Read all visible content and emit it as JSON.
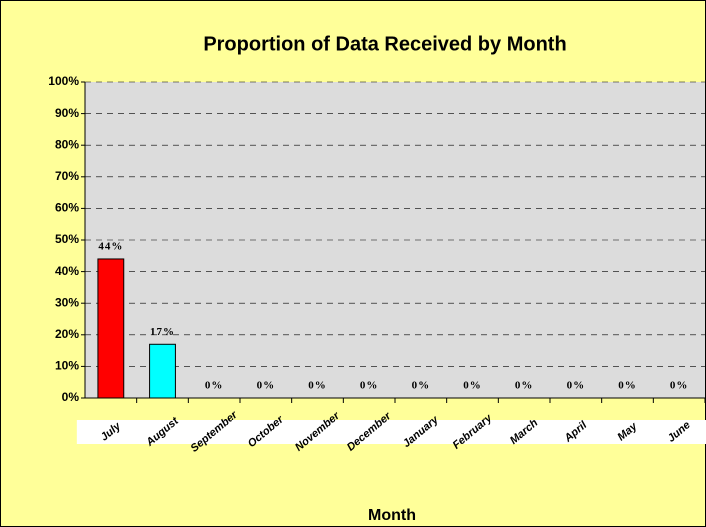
{
  "chart_data": {
    "type": "bar",
    "title": "Proportion of Data Received by Month",
    "x_label": "Month",
    "categories": [
      "July",
      "August",
      "September",
      "October",
      "November",
      "December",
      "January",
      "February",
      "March",
      "April",
      "May",
      "June"
    ],
    "values": [
      44,
      17,
      0,
      0,
      0,
      0,
      0,
      0,
      0,
      0,
      0,
      0
    ],
    "value_labels": [
      "44%",
      "17%",
      "0%",
      "0%",
      "0%",
      "0%",
      "0%",
      "0%",
      "0%",
      "0%",
      "0%",
      "0%"
    ],
    "colors": [
      "#ff0000",
      "#00ffff",
      "#ff0000",
      "#ff0000",
      "#ff0000",
      "#ff0000",
      "#ff0000",
      "#ff0000",
      "#ff0000",
      "#ff0000",
      "#ff0000",
      "#ff0000"
    ],
    "ylim": [
      0,
      100
    ],
    "yticks": [
      {
        "value": 0,
        "label": "0%"
      },
      {
        "value": 10,
        "label": "10%"
      },
      {
        "value": 20,
        "label": "20%"
      },
      {
        "value": 30,
        "label": "30%"
      },
      {
        "value": 40,
        "label": "40%"
      },
      {
        "value": 50,
        "label": "50%"
      },
      {
        "value": 60,
        "label": "60%"
      },
      {
        "value": 70,
        "label": "70%"
      },
      {
        "value": 80,
        "label": "80%"
      },
      {
        "value": 90,
        "label": "90%"
      },
      {
        "value": 100,
        "label": "100%"
      }
    ],
    "grid": true
  }
}
